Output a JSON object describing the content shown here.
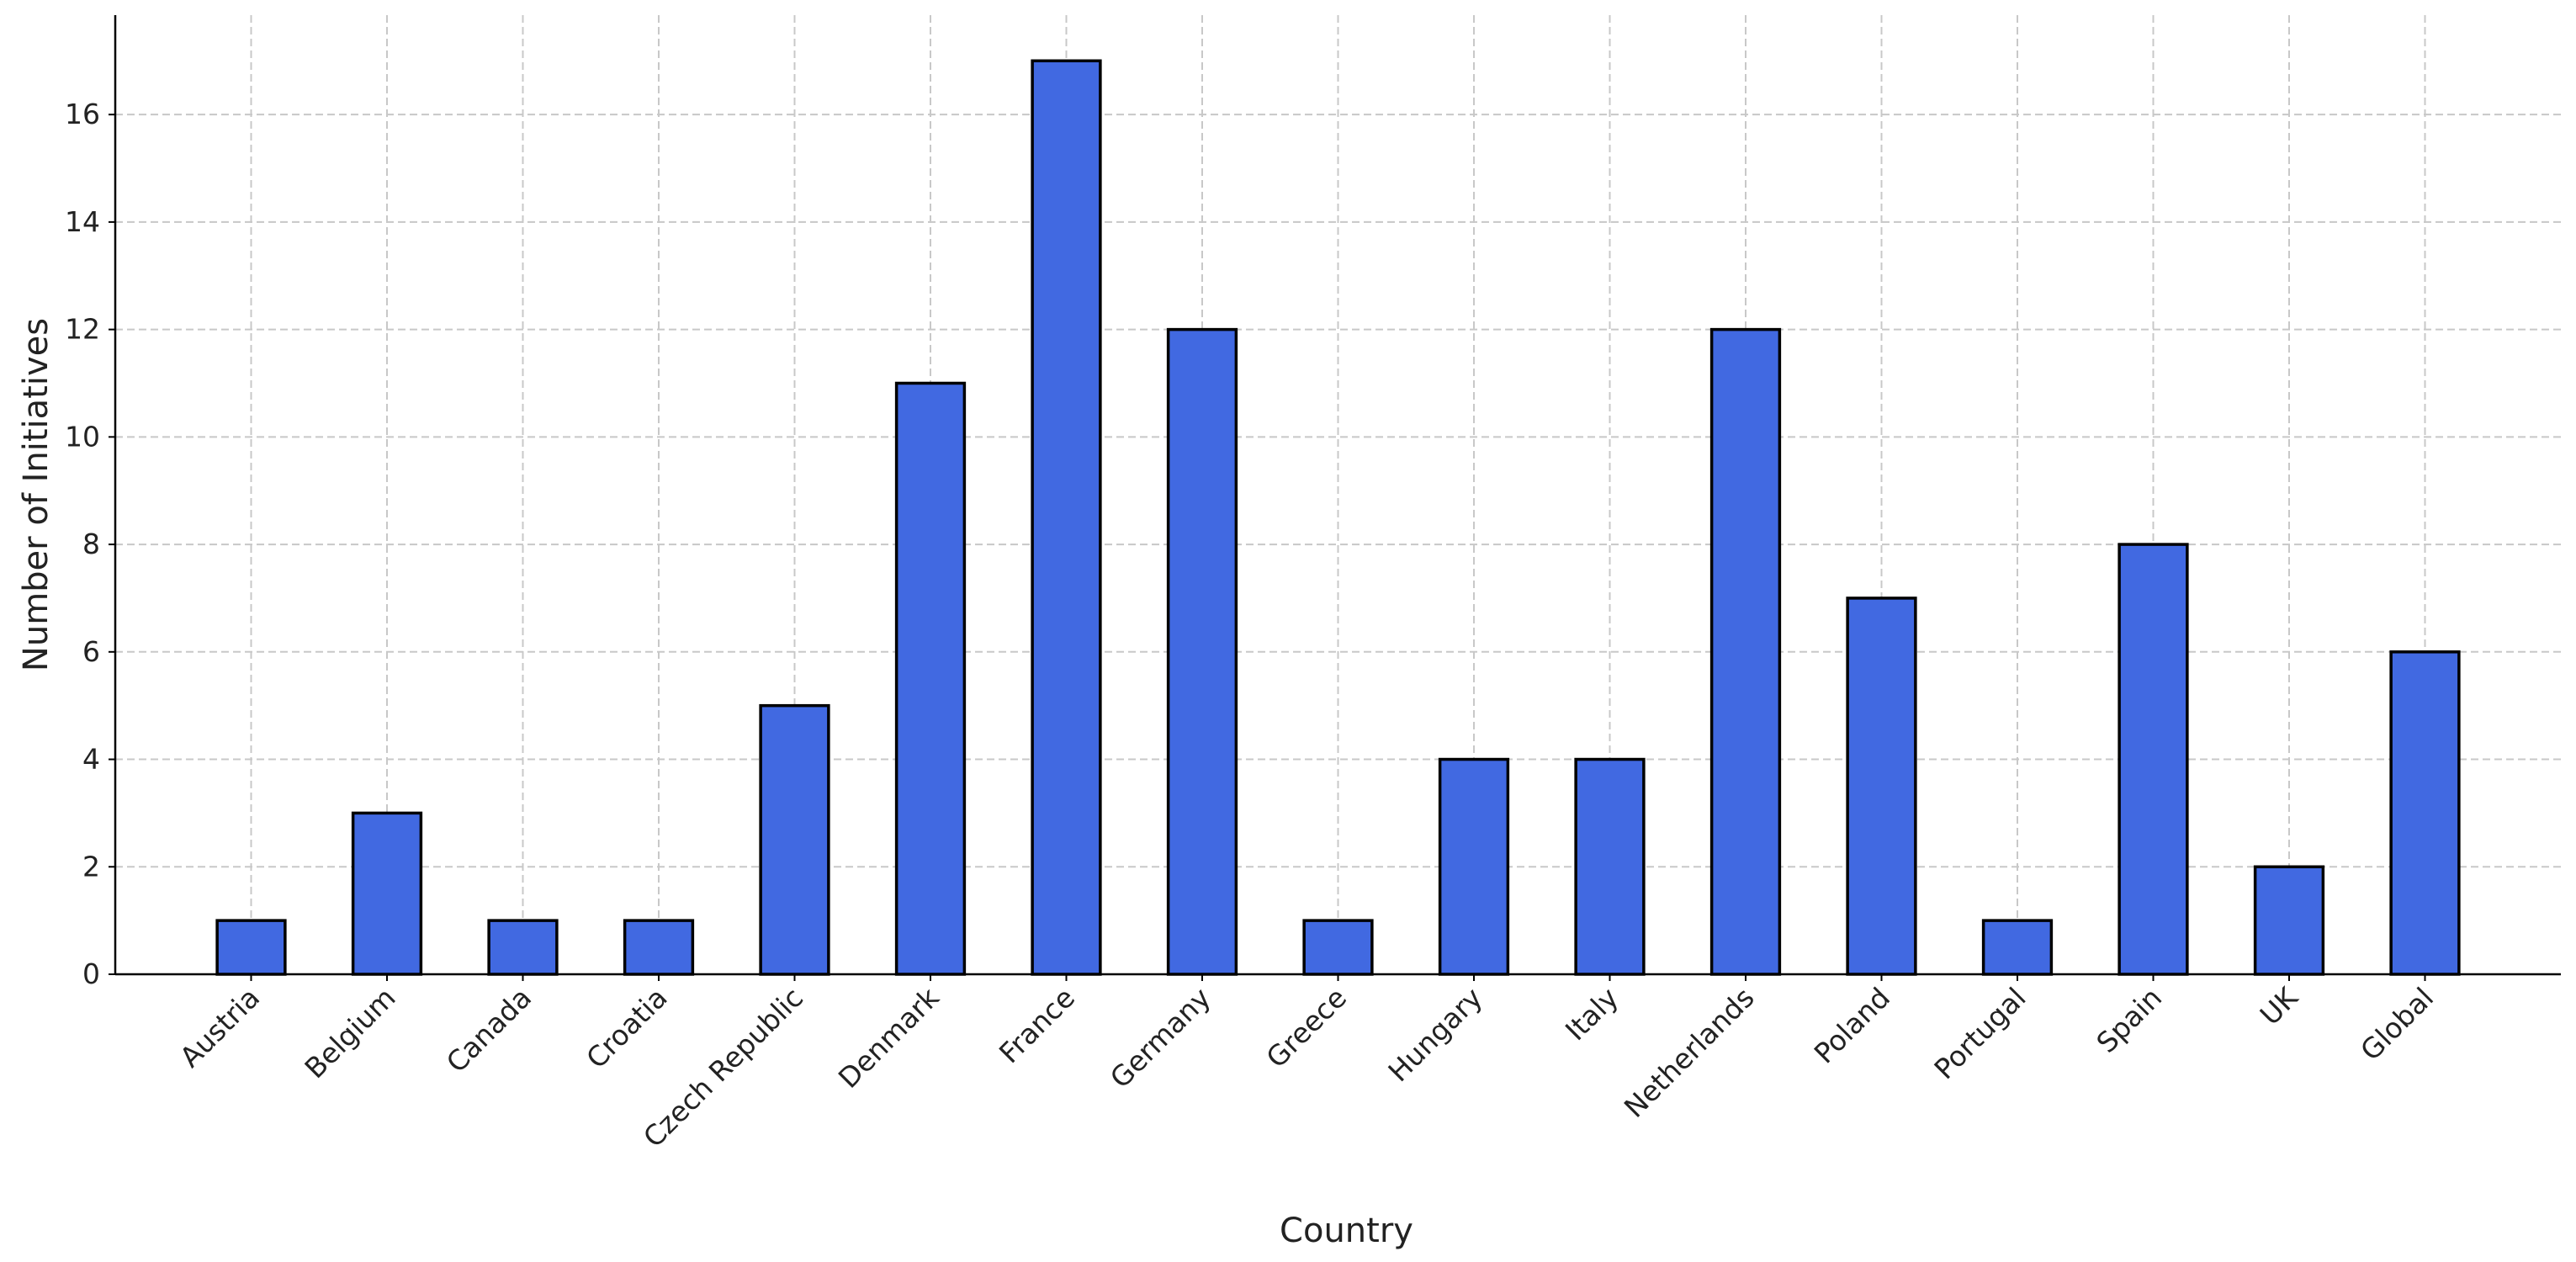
{
  "chart_data": {
    "type": "bar",
    "categories": [
      "Austria",
      "Belgium",
      "Canada",
      "Croatia",
      "Czech Republic",
      "Denmark",
      "France",
      "Germany",
      "Greece",
      "Hungary",
      "Italy",
      "Netherlands",
      "Poland",
      "Portugal",
      "Spain",
      "UK",
      "Global"
    ],
    "values": [
      1,
      3,
      1,
      1,
      5,
      11,
      17,
      12,
      1,
      4,
      4,
      12,
      7,
      1,
      8,
      2,
      6
    ],
    "title": "",
    "xlabel": "Country",
    "ylabel": "Number of Initiatives",
    "ylim": [
      0,
      17.85
    ],
    "yticks": [
      0,
      2,
      4,
      6,
      8,
      10,
      12,
      14,
      16
    ],
    "grid": true,
    "bar_color": "#4169e1",
    "edge_color": "#000000"
  }
}
